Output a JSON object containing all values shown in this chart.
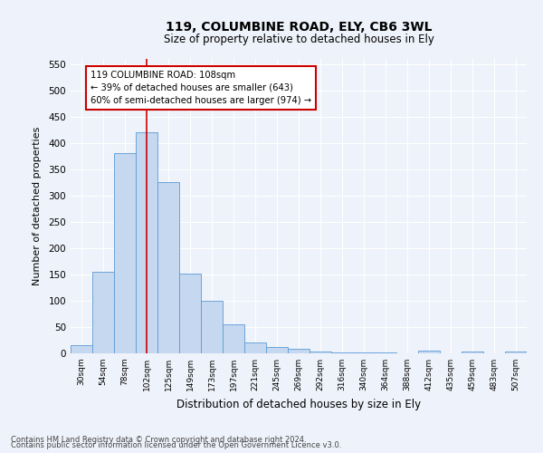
{
  "title1": "119, COLUMBINE ROAD, ELY, CB6 3WL",
  "title2": "Size of property relative to detached houses in Ely",
  "xlabel": "Distribution of detached houses by size in Ely",
  "ylabel": "Number of detached properties",
  "bin_labels": [
    "30sqm",
    "54sqm",
    "78sqm",
    "102sqm",
    "125sqm",
    "149sqm",
    "173sqm",
    "197sqm",
    "221sqm",
    "245sqm",
    "269sqm",
    "292sqm",
    "316sqm",
    "340sqm",
    "364sqm",
    "388sqm",
    "412sqm",
    "435sqm",
    "459sqm",
    "483sqm",
    "507sqm"
  ],
  "bar_values": [
    15,
    155,
    380,
    420,
    325,
    152,
    100,
    55,
    20,
    12,
    8,
    3,
    2,
    1,
    1,
    0,
    5,
    0,
    4,
    0,
    4
  ],
  "bar_color": "#c5d8f0",
  "bar_edge_color": "#5b9bd5",
  "property_bin_index": 3,
  "vline_color": "#cc0000",
  "annotation_text": "119 COLUMBINE ROAD: 108sqm\n← 39% of detached houses are smaller (643)\n60% of semi-detached houses are larger (974) →",
  "annotation_box_color": "#ffffff",
  "annotation_box_edge": "#cc0000",
  "ylim": [
    0,
    560
  ],
  "yticks": [
    0,
    50,
    100,
    150,
    200,
    250,
    300,
    350,
    400,
    450,
    500,
    550
  ],
  "footer1": "Contains HM Land Registry data © Crown copyright and database right 2024.",
  "footer2": "Contains public sector information licensed under the Open Government Licence v3.0.",
  "bg_color": "#eef2fa",
  "grid_color": "#ffffff"
}
